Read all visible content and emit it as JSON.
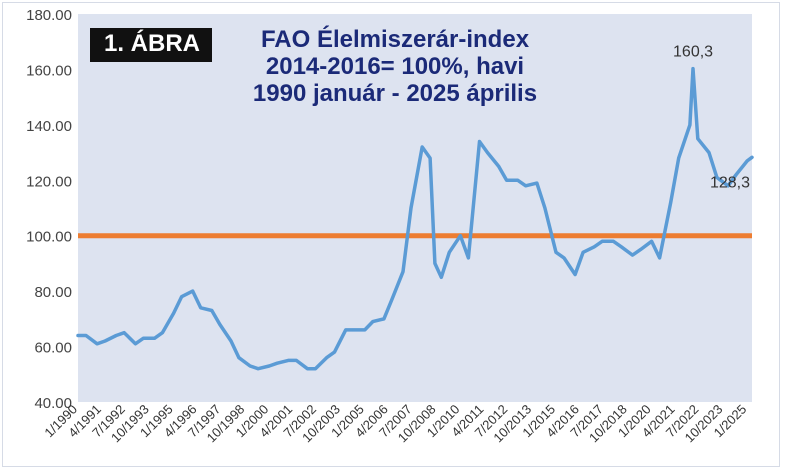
{
  "figure_label": "1. ÁBRA",
  "title_lines": [
    "FAO Élelmiszerár-index",
    "2014-2016= 100%, havi",
    "1990 január - 2025 április"
  ],
  "colors": {
    "series": "#5b9bd5",
    "reference": "#ed7d31",
    "title": "#1b2a78",
    "plot_background": "#dde3f0"
  },
  "chart_data": {
    "type": "line",
    "yticks": [
      "180.00",
      "160.00",
      "140.00",
      "120.00",
      "100.00",
      "80.00",
      "60.00",
      "40.00"
    ],
    "ylim": [
      40,
      180
    ],
    "xlim": [
      "1/1990",
      "4/2025"
    ],
    "xticks": [
      "1/1990",
      "4/1991",
      "7/1992",
      "10/1993",
      "1/1995",
      "4/1996",
      "7/1997",
      "10/1998",
      "1/2000",
      "4/2001",
      "7/2002",
      "10/2003",
      "1/2005",
      "4/2006",
      "7/2007",
      "10/2008",
      "1/2010",
      "4/2011",
      "7/2012",
      "10/2013",
      "1/2015",
      "4/2016",
      "7/2017",
      "10/2018",
      "1/2020",
      "4/2021",
      "7/2022",
      "10/2023",
      "1/2025"
    ],
    "reference_line": 100,
    "annotations": [
      {
        "text": "160,3",
        "x": "3/2022",
        "y": 160.3
      },
      {
        "text": "128,3",
        "x": "4/2025",
        "y": 128.3
      }
    ],
    "series": [
      {
        "x": [
          "1/1990",
          "6/1990",
          "1/1991",
          "6/1991",
          "1/1992",
          "6/1992",
          "1/1993",
          "6/1993",
          "1/1994",
          "6/1994",
          "1/1995",
          "6/1995",
          "1/1996",
          "6/1996",
          "1/1997",
          "6/1997",
          "1/1998",
          "6/1998",
          "1/1999",
          "6/1999",
          "1/2000",
          "6/2000",
          "1/2001",
          "6/2001",
          "1/2002",
          "6/2002",
          "1/2003",
          "6/2003",
          "1/2004",
          "6/2004",
          "1/2005",
          "6/2005",
          "1/2006",
          "6/2006",
          "1/2007",
          "6/2007",
          "1/2008",
          "6/2008",
          "9/2008",
          "1/2009",
          "6/2009",
          "1/2010",
          "6/2010",
          "1/2011",
          "6/2011",
          "1/2012",
          "6/2012",
          "1/2013",
          "6/2013",
          "1/2014",
          "6/2014",
          "1/2015",
          "6/2015",
          "1/2016",
          "6/2016",
          "1/2017",
          "6/2017",
          "1/2018",
          "6/2018",
          "1/2019",
          "6/2019",
          "1/2020",
          "6/2020",
          "1/2021",
          "6/2021",
          "1/2022",
          "3/2022",
          "6/2022",
          "1/2023",
          "6/2023",
          "1/2024",
          "6/2024",
          "1/2025",
          "4/2025"
        ],
        "values": [
          64,
          64,
          61,
          62,
          64,
          65,
          61,
          63,
          63,
          65,
          72,
          78,
          80,
          74,
          73,
          68,
          62,
          56,
          53,
          52,
          53,
          54,
          55,
          55,
          52,
          52,
          56,
          58,
          66,
          66,
          66,
          69,
          70,
          77,
          87,
          110,
          132,
          128,
          90,
          85,
          94,
          100,
          92,
          134,
          130,
          125,
          120,
          120,
          118,
          119,
          110,
          94,
          92,
          86,
          94,
          96,
          98,
          98,
          96,
          93,
          95,
          98,
          92,
          112,
          128,
          140,
          160.3,
          135,
          130,
          121,
          118,
          122,
          127,
          128.3
        ]
      }
    ]
  }
}
